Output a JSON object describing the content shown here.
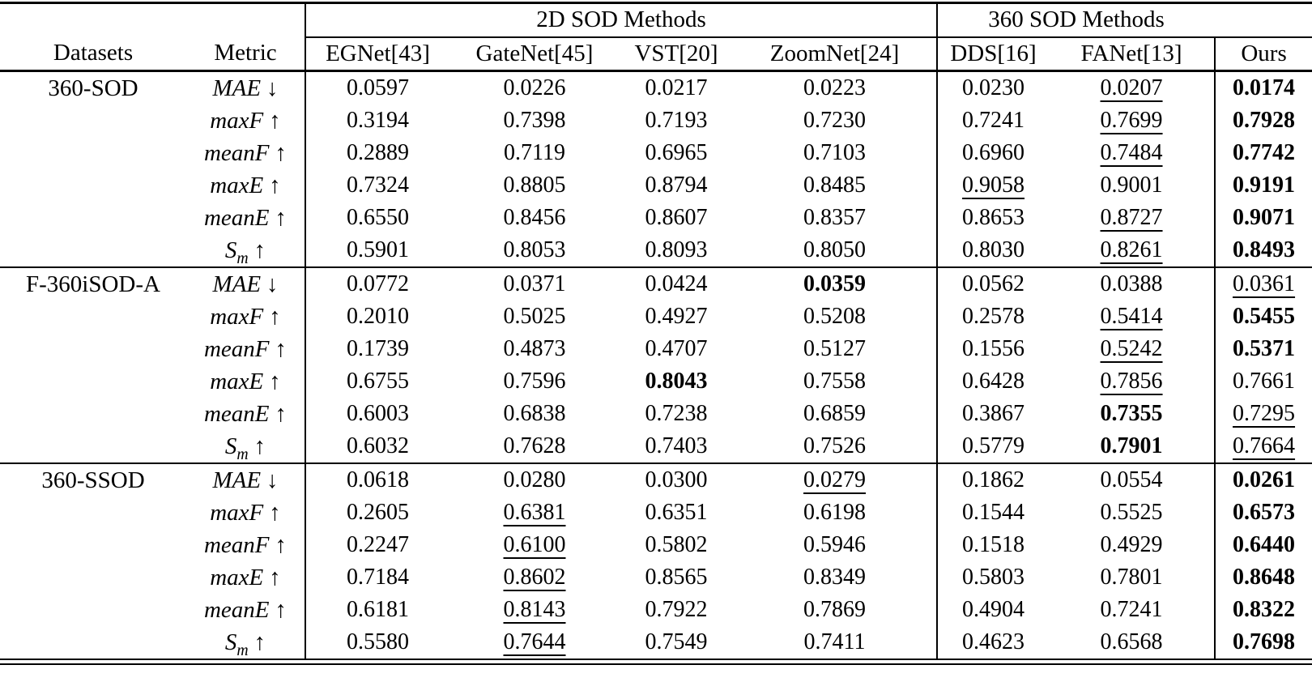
{
  "table": {
    "group_headers": [
      {
        "label": "2D SOD Methods",
        "span": 4
      },
      {
        "label": "360 SOD Methods",
        "span": 2
      }
    ],
    "columns": [
      "Datasets",
      "Metric",
      "EGNet[43]",
      "GateNet[45]",
      "VST[20]",
      "ZoomNet[24]",
      "DDS[16]",
      "FANet[13]",
      "Ours"
    ],
    "style_legend": {
      "b": "bold (best result)",
      "u": "underline (second best)",
      "p": "plain"
    },
    "groups": [
      {
        "dataset": "360-SOD",
        "rows": [
          {
            "metric": "MAE",
            "sub": "",
            "arrow": "↓",
            "values": [
              "0.0597",
              "0.0226",
              "0.0217",
              "0.0223",
              "0.0230",
              "0.0207",
              "0.0174"
            ],
            "styles": [
              "p",
              "p",
              "p",
              "p",
              "p",
              "u",
              "b"
            ]
          },
          {
            "metric": "maxF",
            "sub": "",
            "arrow": "↑",
            "values": [
              "0.3194",
              "0.7398",
              "0.7193",
              "0.7230",
              "0.7241",
              "0.7699",
              "0.7928"
            ],
            "styles": [
              "p",
              "p",
              "p",
              "p",
              "p",
              "u",
              "b"
            ]
          },
          {
            "metric": "meanF",
            "sub": "",
            "arrow": "↑",
            "values": [
              "0.2889",
              "0.7119",
              "0.6965",
              "0.7103",
              "0.6960",
              "0.7484",
              "0.7742"
            ],
            "styles": [
              "p",
              "p",
              "p",
              "p",
              "p",
              "u",
              "b"
            ]
          },
          {
            "metric": "maxE",
            "sub": "",
            "arrow": "↑",
            "values": [
              "0.7324",
              "0.8805",
              "0.8794",
              "0.8485",
              "0.9058",
              "0.9001",
              "0.9191"
            ],
            "styles": [
              "p",
              "p",
              "p",
              "p",
              "u",
              "p",
              "b"
            ]
          },
          {
            "metric": "meanE",
            "sub": "",
            "arrow": "↑",
            "values": [
              "0.6550",
              "0.8456",
              "0.8607",
              "0.8357",
              "0.8653",
              "0.8727",
              "0.9071"
            ],
            "styles": [
              "p",
              "p",
              "p",
              "p",
              "p",
              "u",
              "b"
            ]
          },
          {
            "metric": "S",
            "sub": "m",
            "arrow": "↑",
            "values": [
              "0.5901",
              "0.8053",
              "0.8093",
              "0.8050",
              "0.8030",
              "0.8261",
              "0.8493"
            ],
            "styles": [
              "p",
              "p",
              "p",
              "p",
              "p",
              "u",
              "b"
            ]
          }
        ]
      },
      {
        "dataset": "F-360iSOD-A",
        "rows": [
          {
            "metric": "MAE",
            "sub": "",
            "arrow": "↓",
            "values": [
              "0.0772",
              "0.0371",
              "0.0424",
              "0.0359",
              "0.0562",
              "0.0388",
              "0.0361"
            ],
            "styles": [
              "p",
              "p",
              "p",
              "b",
              "p",
              "p",
              "u"
            ]
          },
          {
            "metric": "maxF",
            "sub": "",
            "arrow": "↑",
            "values": [
              "0.2010",
              "0.5025",
              "0.4927",
              "0.5208",
              "0.2578",
              "0.5414",
              "0.5455"
            ],
            "styles": [
              "p",
              "p",
              "p",
              "p",
              "p",
              "u",
              "b"
            ]
          },
          {
            "metric": "meanF",
            "sub": "",
            "arrow": "↑",
            "values": [
              "0.1739",
              "0.4873",
              "0.4707",
              "0.5127",
              "0.1556",
              "0.5242",
              "0.5371"
            ],
            "styles": [
              "p",
              "p",
              "p",
              "p",
              "p",
              "u",
              "b"
            ]
          },
          {
            "metric": "maxE",
            "sub": "",
            "arrow": "↑",
            "values": [
              "0.6755",
              "0.7596",
              "0.8043",
              "0.7558",
              "0.6428",
              "0.7856",
              "0.7661"
            ],
            "styles": [
              "p",
              "p",
              "b",
              "p",
              "p",
              "u",
              "p"
            ]
          },
          {
            "metric": "meanE",
            "sub": "",
            "arrow": "↑",
            "values": [
              "0.6003",
              "0.6838",
              "0.7238",
              "0.6859",
              "0.3867",
              "0.7355",
              "0.7295"
            ],
            "styles": [
              "p",
              "p",
              "p",
              "p",
              "p",
              "b",
              "u"
            ]
          },
          {
            "metric": "S",
            "sub": "m",
            "arrow": "↑",
            "values": [
              "0.6032",
              "0.7628",
              "0.7403",
              "0.7526",
              "0.5779",
              "0.7901",
              "0.7664"
            ],
            "styles": [
              "p",
              "p",
              "p",
              "p",
              "p",
              "b",
              "u"
            ]
          }
        ]
      },
      {
        "dataset": "360-SSOD",
        "rows": [
          {
            "metric": "MAE",
            "sub": "",
            "arrow": "↓",
            "values": [
              "0.0618",
              "0.0280",
              "0.0300",
              "0.0279",
              "0.1862",
              "0.0554",
              "0.0261"
            ],
            "styles": [
              "p",
              "p",
              "p",
              "u",
              "p",
              "p",
              "b"
            ]
          },
          {
            "metric": "maxF",
            "sub": "",
            "arrow": "↑",
            "values": [
              "0.2605",
              "0.6381",
              "0.6351",
              "0.6198",
              "0.1544",
              "0.5525",
              "0.6573"
            ],
            "styles": [
              "p",
              "u",
              "p",
              "p",
              "p",
              "p",
              "b"
            ]
          },
          {
            "metric": "meanF",
            "sub": "",
            "arrow": "↑",
            "values": [
              "0.2247",
              "0.6100",
              "0.5802",
              "0.5946",
              "0.1518",
              "0.4929",
              "0.6440"
            ],
            "styles": [
              "p",
              "u",
              "p",
              "p",
              "p",
              "p",
              "b"
            ]
          },
          {
            "metric": "maxE",
            "sub": "",
            "arrow": "↑",
            "values": [
              "0.7184",
              "0.8602",
              "0.8565",
              "0.8349",
              "0.5803",
              "0.7801",
              "0.8648"
            ],
            "styles": [
              "p",
              "u",
              "p",
              "p",
              "p",
              "p",
              "b"
            ]
          },
          {
            "metric": "meanE",
            "sub": "",
            "arrow": "↑",
            "values": [
              "0.6181",
              "0.8143",
              "0.7922",
              "0.7869",
              "0.4904",
              "0.7241",
              "0.8322"
            ],
            "styles": [
              "p",
              "u",
              "p",
              "p",
              "p",
              "p",
              "b"
            ]
          },
          {
            "metric": "S",
            "sub": "m",
            "arrow": "↑",
            "values": [
              "0.5580",
              "0.7644",
              "0.7549",
              "0.7411",
              "0.4623",
              "0.6568",
              "0.7698"
            ],
            "styles": [
              "p",
              "u",
              "p",
              "p",
              "p",
              "p",
              "b"
            ]
          }
        ]
      }
    ]
  }
}
